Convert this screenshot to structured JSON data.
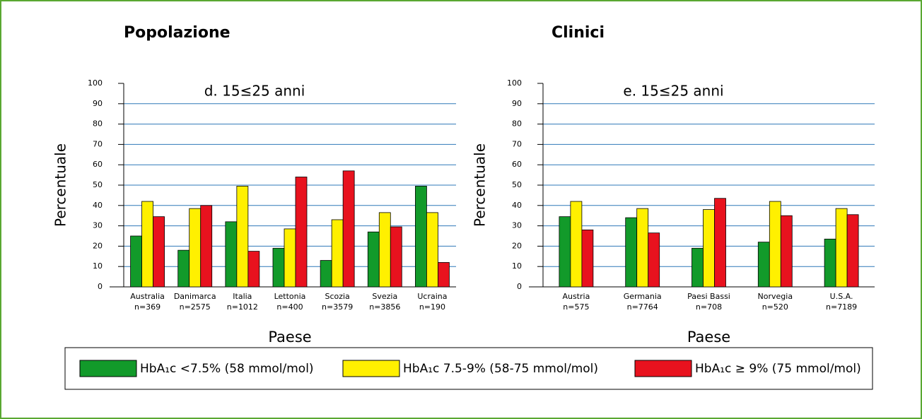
{
  "chart_data": [
    {
      "type": "bar",
      "header": "Popolazione",
      "title": "d. 15≤25  anni",
      "ylabel": "Percentuale",
      "xlabel": "Paese",
      "categories": [
        "Australia",
        "Danimarca",
        "Italia",
        "Lettonia",
        "Scozia",
        "Svezia",
        "Ucraina"
      ],
      "category_sublabels": [
        "n=369",
        "n=2575",
        "n=1012",
        "n=400",
        "n=3579",
        "n=3856",
        "n=190"
      ],
      "series": [
        {
          "name": "HbA₁c <7.5% (58 mmol/mol)",
          "color": "#129a2a",
          "values": [
            25,
            18,
            32,
            19,
            13,
            27,
            49.5
          ]
        },
        {
          "name": "HbA₁c 7.5-9% (58-75 mmol/mol)",
          "color": "#fff000",
          "values": [
            42,
            38.5,
            49.5,
            28.5,
            33,
            36.5,
            36.5
          ]
        },
        {
          "name": "HbA₁c ≥ 9% (75 mmol/mol)",
          "color": "#e8121e",
          "values": [
            34.5,
            40,
            17.5,
            54,
            57,
            29.5,
            12
          ]
        }
      ],
      "ylim": [
        0,
        100
      ],
      "yticks": [
        0,
        10,
        20,
        30,
        40,
        50,
        60,
        70,
        80,
        90,
        100
      ],
      "grid": true
    },
    {
      "type": "bar",
      "header": "Clinici",
      "title": "e. 15≤25  anni",
      "ylabel": "Percentuale",
      "xlabel": "Paese",
      "categories": [
        "Austria",
        "Germania",
        "Paesi Bassi",
        "Norvegia",
        "U.S.A."
      ],
      "category_sublabels": [
        "n=575",
        "n=7764",
        "n=708",
        "n=520",
        "n=7189"
      ],
      "series": [
        {
          "name": "HbA₁c <7.5% (58 mmol/mol)",
          "color": "#129a2a",
          "values": [
            34.5,
            34,
            19,
            22,
            23.5
          ]
        },
        {
          "name": "HbA₁c 7.5-9% (58-75 mmol/mol)",
          "color": "#fff000",
          "values": [
            42,
            38.5,
            38,
            42,
            38.5
          ]
        },
        {
          "name": "HbA₁c ≥ 9% (75 mmol/mol)",
          "color": "#e8121e",
          "values": [
            28,
            26.5,
            43.5,
            35,
            35.5
          ]
        }
      ],
      "ylim": [
        0,
        100
      ],
      "yticks": [
        0,
        10,
        20,
        30,
        40,
        50,
        60,
        70,
        80,
        90,
        100
      ],
      "grid": true
    }
  ]
}
